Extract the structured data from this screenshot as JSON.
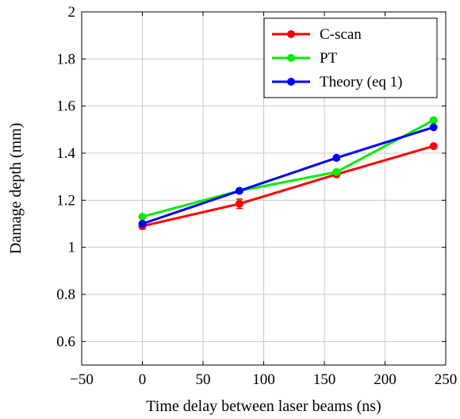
{
  "chart_data": {
    "type": "line",
    "title": "",
    "xlabel": "Time delay between laser beams (ns)",
    "ylabel": "Damage depth (mm)",
    "xlim": [
      -50,
      250
    ],
    "ylim": [
      0.5,
      2
    ],
    "xticks": [
      -50,
      0,
      50,
      100,
      150,
      200,
      250
    ],
    "xtick_labels": [
      "−50",
      "0",
      "50",
      "100",
      "150",
      "200",
      "250"
    ],
    "yticks": [
      0.6,
      0.8,
      1,
      1.2,
      1.4,
      1.6,
      1.8,
      2
    ],
    "ytick_labels": [
      "0.6",
      "0.8",
      "1",
      "1.2",
      "1.4",
      "1.6",
      "1.8",
      "2"
    ],
    "grid": true,
    "legend_position": "top-right",
    "series": [
      {
        "name": "C-scan",
        "color": "#ff0000",
        "x": [
          0,
          80,
          160,
          240
        ],
        "y": [
          1.09,
          1.185,
          1.31,
          1.43
        ],
        "error": [
          0.012,
          0.02,
          0.01,
          0.008
        ]
      },
      {
        "name": "PT",
        "color": "#00ee00",
        "x": [
          0,
          80,
          160,
          240
        ],
        "y": [
          1.13,
          1.24,
          1.32,
          1.54
        ]
      },
      {
        "name": "Theory (eq 1)",
        "color": "#0000ff",
        "x": [
          0,
          80,
          160,
          240
        ],
        "y": [
          1.1,
          1.24,
          1.38,
          1.51
        ]
      }
    ]
  }
}
